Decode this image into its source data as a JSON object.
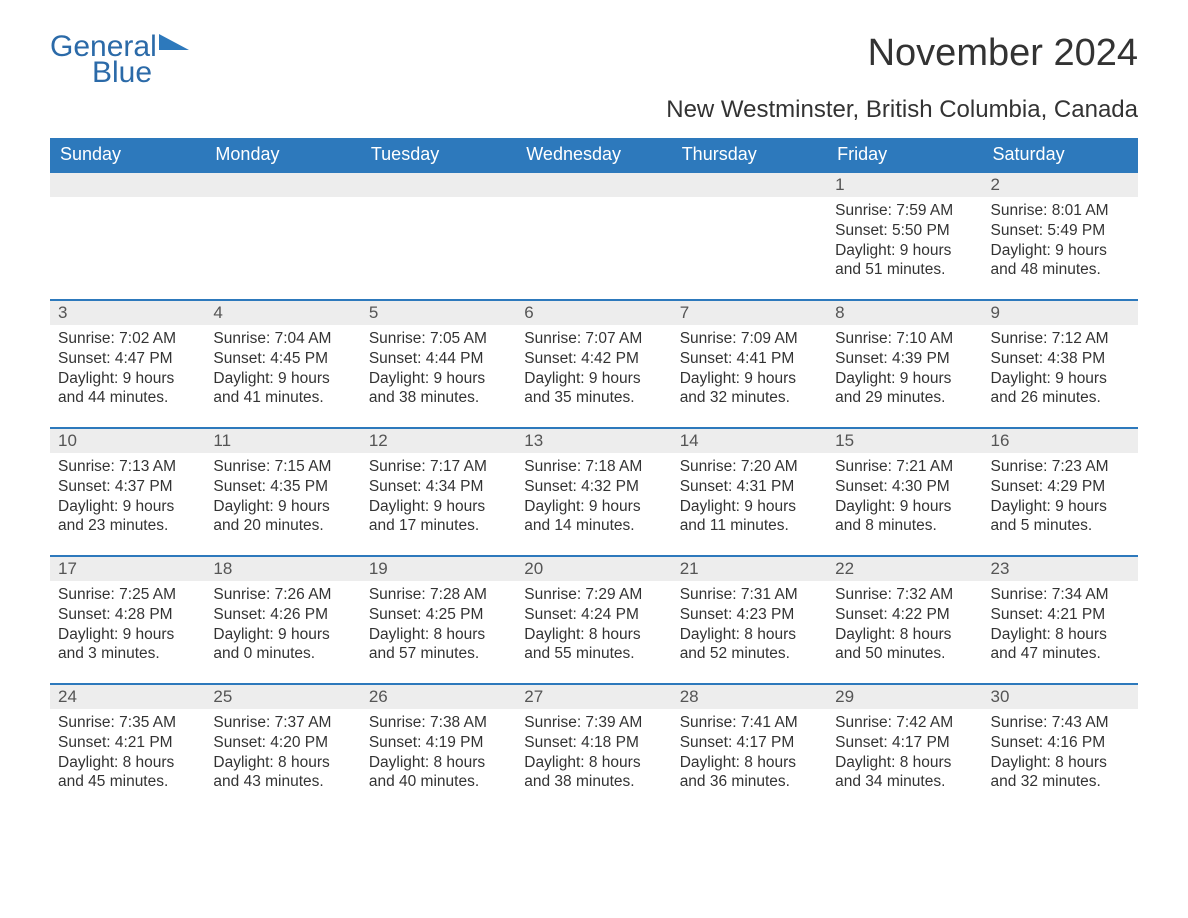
{
  "brand": {
    "general": "General",
    "blue": "Blue",
    "logo_color": "#2d79bc"
  },
  "header": {
    "title": "November 2024",
    "subtitle": "New Westminster, British Columbia, Canada"
  },
  "colors": {
    "header_bg": "#2d79bc",
    "header_text": "#ffffff",
    "week_rule": "#2d79bc",
    "daynum_bg": "#ededed",
    "text": "#333333",
    "background": "#ffffff"
  },
  "typography": {
    "title_fontsize": 38,
    "subtitle_fontsize": 24,
    "weekday_fontsize": 18,
    "daynum_fontsize": 17,
    "body_fontsize": 15.5,
    "font_family": "Arial"
  },
  "calendar": {
    "type": "table",
    "weekdays": [
      "Sunday",
      "Monday",
      "Tuesday",
      "Wednesday",
      "Thursday",
      "Friday",
      "Saturday"
    ],
    "labels": {
      "sunrise": "Sunrise",
      "sunset": "Sunset",
      "daylight": "Daylight"
    },
    "weeks": [
      [
        null,
        null,
        null,
        null,
        null,
        {
          "n": "1",
          "sunrise": "7:59 AM",
          "sunset": "5:50 PM",
          "daylight_h": "9",
          "daylight_m": "51"
        },
        {
          "n": "2",
          "sunrise": "8:01 AM",
          "sunset": "5:49 PM",
          "daylight_h": "9",
          "daylight_m": "48"
        }
      ],
      [
        {
          "n": "3",
          "sunrise": "7:02 AM",
          "sunset": "4:47 PM",
          "daylight_h": "9",
          "daylight_m": "44"
        },
        {
          "n": "4",
          "sunrise": "7:04 AM",
          "sunset": "4:45 PM",
          "daylight_h": "9",
          "daylight_m": "41"
        },
        {
          "n": "5",
          "sunrise": "7:05 AM",
          "sunset": "4:44 PM",
          "daylight_h": "9",
          "daylight_m": "38"
        },
        {
          "n": "6",
          "sunrise": "7:07 AM",
          "sunset": "4:42 PM",
          "daylight_h": "9",
          "daylight_m": "35"
        },
        {
          "n": "7",
          "sunrise": "7:09 AM",
          "sunset": "4:41 PM",
          "daylight_h": "9",
          "daylight_m": "32"
        },
        {
          "n": "8",
          "sunrise": "7:10 AM",
          "sunset": "4:39 PM",
          "daylight_h": "9",
          "daylight_m": "29"
        },
        {
          "n": "9",
          "sunrise": "7:12 AM",
          "sunset": "4:38 PM",
          "daylight_h": "9",
          "daylight_m": "26"
        }
      ],
      [
        {
          "n": "10",
          "sunrise": "7:13 AM",
          "sunset": "4:37 PM",
          "daylight_h": "9",
          "daylight_m": "23"
        },
        {
          "n": "11",
          "sunrise": "7:15 AM",
          "sunset": "4:35 PM",
          "daylight_h": "9",
          "daylight_m": "20"
        },
        {
          "n": "12",
          "sunrise": "7:17 AM",
          "sunset": "4:34 PM",
          "daylight_h": "9",
          "daylight_m": "17"
        },
        {
          "n": "13",
          "sunrise": "7:18 AM",
          "sunset": "4:32 PM",
          "daylight_h": "9",
          "daylight_m": "14"
        },
        {
          "n": "14",
          "sunrise": "7:20 AM",
          "sunset": "4:31 PM",
          "daylight_h": "9",
          "daylight_m": "11"
        },
        {
          "n": "15",
          "sunrise": "7:21 AM",
          "sunset": "4:30 PM",
          "daylight_h": "9",
          "daylight_m": "8"
        },
        {
          "n": "16",
          "sunrise": "7:23 AM",
          "sunset": "4:29 PM",
          "daylight_h": "9",
          "daylight_m": "5"
        }
      ],
      [
        {
          "n": "17",
          "sunrise": "7:25 AM",
          "sunset": "4:28 PM",
          "daylight_h": "9",
          "daylight_m": "3"
        },
        {
          "n": "18",
          "sunrise": "7:26 AM",
          "sunset": "4:26 PM",
          "daylight_h": "9",
          "daylight_m": "0"
        },
        {
          "n": "19",
          "sunrise": "7:28 AM",
          "sunset": "4:25 PM",
          "daylight_h": "8",
          "daylight_m": "57"
        },
        {
          "n": "20",
          "sunrise": "7:29 AM",
          "sunset": "4:24 PM",
          "daylight_h": "8",
          "daylight_m": "55"
        },
        {
          "n": "21",
          "sunrise": "7:31 AM",
          "sunset": "4:23 PM",
          "daylight_h": "8",
          "daylight_m": "52"
        },
        {
          "n": "22",
          "sunrise": "7:32 AM",
          "sunset": "4:22 PM",
          "daylight_h": "8",
          "daylight_m": "50"
        },
        {
          "n": "23",
          "sunrise": "7:34 AM",
          "sunset": "4:21 PM",
          "daylight_h": "8",
          "daylight_m": "47"
        }
      ],
      [
        {
          "n": "24",
          "sunrise": "7:35 AM",
          "sunset": "4:21 PM",
          "daylight_h": "8",
          "daylight_m": "45"
        },
        {
          "n": "25",
          "sunrise": "7:37 AM",
          "sunset": "4:20 PM",
          "daylight_h": "8",
          "daylight_m": "43"
        },
        {
          "n": "26",
          "sunrise": "7:38 AM",
          "sunset": "4:19 PM",
          "daylight_h": "8",
          "daylight_m": "40"
        },
        {
          "n": "27",
          "sunrise": "7:39 AM",
          "sunset": "4:18 PM",
          "daylight_h": "8",
          "daylight_m": "38"
        },
        {
          "n": "28",
          "sunrise": "7:41 AM",
          "sunset": "4:17 PM",
          "daylight_h": "8",
          "daylight_m": "36"
        },
        {
          "n": "29",
          "sunrise": "7:42 AM",
          "sunset": "4:17 PM",
          "daylight_h": "8",
          "daylight_m": "34"
        },
        {
          "n": "30",
          "sunrise": "7:43 AM",
          "sunset": "4:16 PM",
          "daylight_h": "8",
          "daylight_m": "32"
        }
      ]
    ]
  }
}
